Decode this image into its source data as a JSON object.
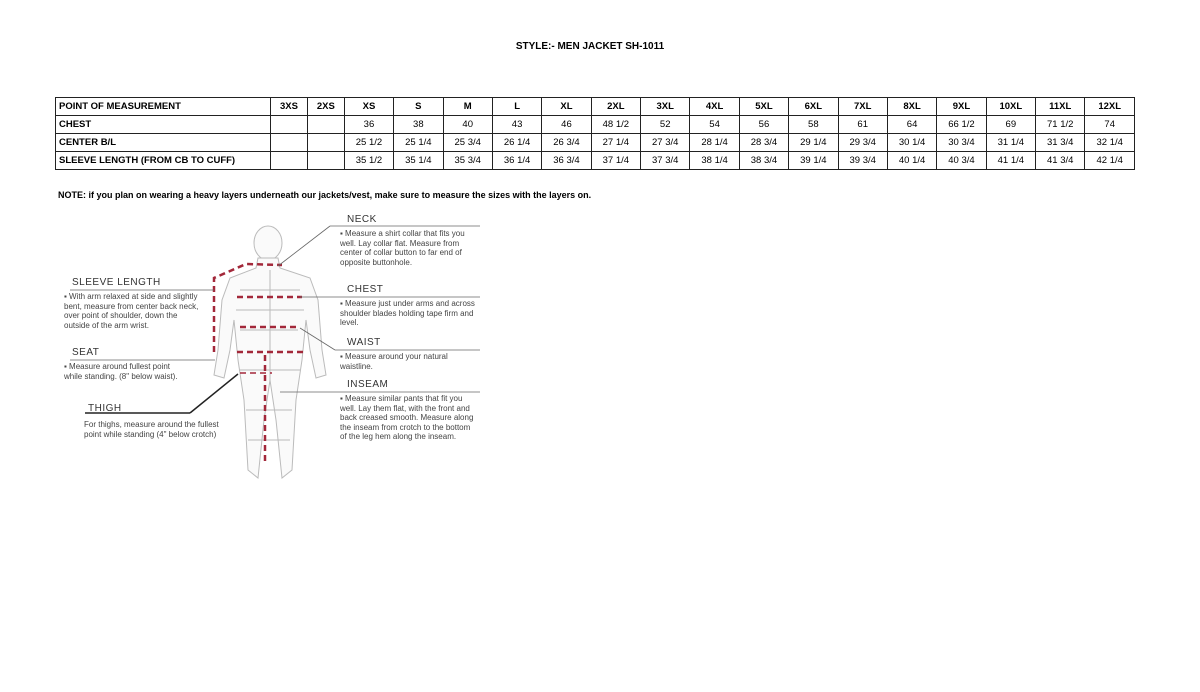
{
  "title": "STYLE:- MEN JACKET  SH-1011",
  "table": {
    "header": [
      "POINT OF MEASUREMENT",
      "3XS",
      "2XS",
      "XS",
      "S",
      "M",
      "L",
      "XL",
      "2XL",
      "3XL",
      "4XL",
      "5XL",
      "6XL",
      "7XL",
      "8XL",
      "9XL",
      "10XL",
      "11XL",
      "12XL"
    ],
    "rows": [
      [
        "CHEST",
        "",
        "",
        "36",
        "38",
        "40",
        "43",
        "46",
        "48 1/2",
        "52",
        "54",
        "56",
        "58",
        "61",
        "64",
        "66 1/2",
        "69",
        "71 1/2",
        "74"
      ],
      [
        "CENTER B/L",
        "",
        "",
        "25 1/2",
        "25 1/4",
        "25 3/4",
        "26 1/4",
        "26 3/4",
        "27 1/4",
        "27 3/4",
        "28 1/4",
        "28 3/4",
        "29 1/4",
        "29 3/4",
        "30 1/4",
        "30 3/4",
        "31 1/4",
        "31 3/4",
        "32 1/4"
      ],
      [
        "SLEEVE LENGTH (FROM CB TO CUFF)",
        "",
        "",
        "35  1/2",
        "35 1/4",
        "35 3/4",
        "36 1/4",
        "36 3/4",
        "37 1/4",
        "37 3/4",
        "38 1/4",
        "38 3/4",
        "39 1/4",
        "39 3/4",
        "40 1/4",
        "40 3/4",
        "41 1/4",
        "41 3/4",
        "42 1/4"
      ]
    ]
  },
  "note": "NOTE: if you plan on wearing a heavy layers underneath our jackets/vest, make sure to measure the sizes with the layers on.",
  "guide": {
    "neck": {
      "title": "NECK",
      "text": "▪ Measure a shirt collar that fits you well. Lay collar flat. Measure from center of collar button to far end of opposite buttonhole."
    },
    "chest": {
      "title": "CHEST",
      "text": "▪ Measure just under arms and across shoulder blades holding tape firm and level."
    },
    "waist": {
      "title": "WAIST",
      "text": "▪ Measure around your natural waistline."
    },
    "inseam": {
      "title": "INSEAM",
      "text": "▪ Measure similar pants that fit you well. Lay them flat, with the front and back creased smooth. Measure along the inseam from crotch to the bottom of the leg hem along the inseam."
    },
    "sleeve": {
      "title": "SLEEVE LENGTH",
      "text": "▪ With arm relaxed at side and slightly bent, measure from center back neck, over point of shoulder, down the outside of the arm wrist."
    },
    "seat": {
      "title": "SEAT",
      "text": "▪ Measure around fullest point while standing. (8\" below waist)."
    },
    "thigh": {
      "title": "THIGH",
      "text": "For thighs, measure around the fullest point while standing (4\" below crotch)"
    }
  },
  "colors": {
    "dash": "#a3283a"
  }
}
